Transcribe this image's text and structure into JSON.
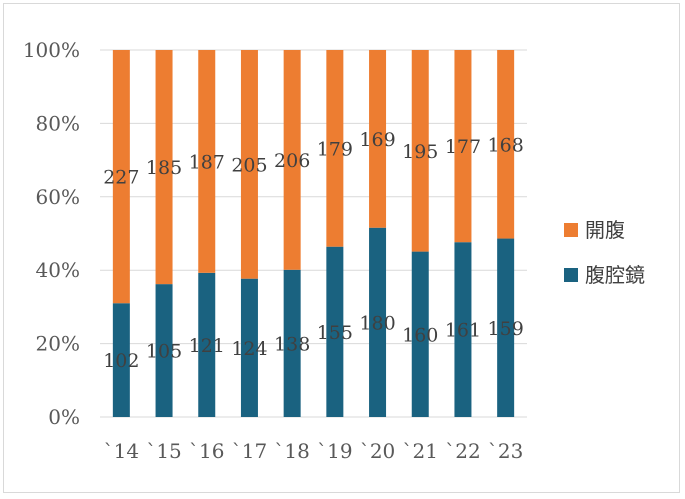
{
  "chart_data": {
    "type": "bar",
    "stacked": "percent",
    "title": "",
    "categories": [
      "`14",
      "`15",
      "`16",
      "`17",
      "`18",
      "`19",
      "`20",
      "`21",
      "`22",
      "`23"
    ],
    "series": [
      {
        "name": "腹腔鏡",
        "color": "#1a6280",
        "values": [
          102,
          105,
          121,
          124,
          138,
          155,
          180,
          160,
          161,
          159
        ]
      },
      {
        "name": "開腹",
        "color": "#ed7d31",
        "values": [
          227,
          185,
          187,
          205,
          206,
          179,
          169,
          195,
          177,
          168
        ]
      }
    ],
    "yticks": [
      "0%",
      "20%",
      "40%",
      "60%",
      "80%",
      "100%"
    ],
    "ylim": [
      0,
      100
    ],
    "grid": true,
    "legend_position": "right"
  }
}
